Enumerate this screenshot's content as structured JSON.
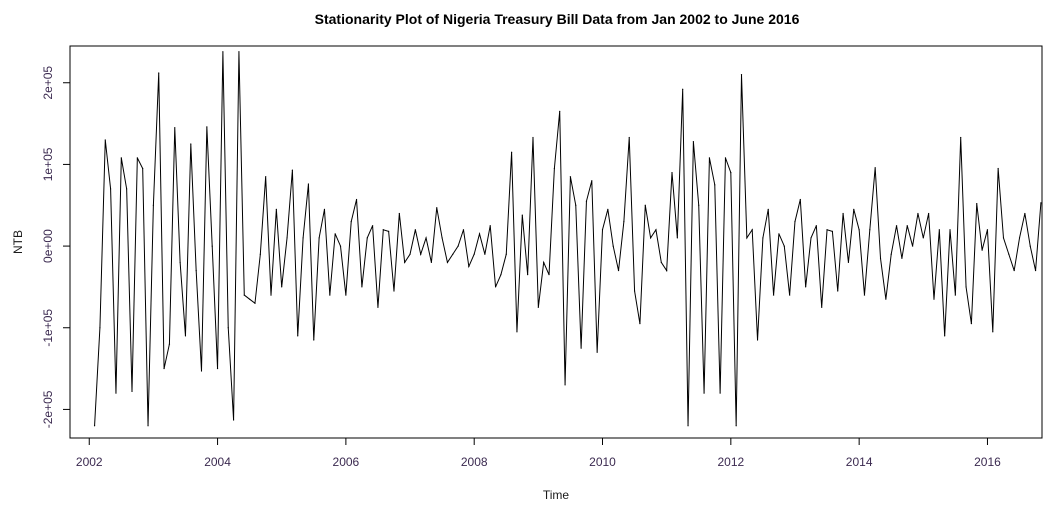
{
  "chart_data": {
    "type": "line",
    "title": "Stationarity Plot of Nigeria Treasury Bill Data from Jan 2002 to June 2016",
    "xlabel": "Time",
    "ylabel": "NTB",
    "xlim": [
      2001.7,
      2016.85
    ],
    "ylim": [
      -235000,
      245000
    ],
    "x_ticks": [
      2002,
      2004,
      2006,
      2008,
      2010,
      2012,
      2014,
      2016
    ],
    "x_tick_labels": [
      "2002",
      "2004",
      "2006",
      "2008",
      "2010",
      "2012",
      "2014",
      "2016"
    ],
    "y_ticks": [
      -200000,
      -100000,
      0,
      100000,
      200000
    ],
    "y_tick_labels": [
      "-2e+05",
      "-1e+05",
      "0e+00",
      "1e+05",
      "2e+05"
    ],
    "start": 2002.083,
    "frequency": 12,
    "series": [
      {
        "name": "NTB",
        "color": "#000000",
        "values": [
          -220000,
          -100000,
          130000,
          70000,
          -180000,
          108000,
          70000,
          -178000,
          108000,
          95000,
          -220000,
          50000,
          212000,
          -150000,
          -120000,
          145000,
          -20000,
          -110000,
          125000,
          -30000,
          -153000,
          146000,
          0,
          -150000,
          238000,
          -100000,
          -213000,
          238000,
          -60000,
          -65000,
          -70000,
          -10000,
          85000,
          -60000,
          45000,
          -50000,
          10000,
          93000,
          -110000,
          10000,
          76000,
          -115000,
          10000,
          45000,
          -60000,
          15000,
          0,
          -60000,
          30000,
          57000,
          -50000,
          10000,
          25000,
          -75000,
          20000,
          18000,
          -55000,
          40000,
          -20000,
          -10000,
          20000,
          -10000,
          10000,
          -20000,
          47000,
          10000,
          -20000,
          -10000,
          0,
          20000,
          -25000,
          -10000,
          15000,
          -10000,
          25000,
          -50000,
          -35000,
          -10000,
          115000,
          -105000,
          38000,
          -35000,
          133000,
          -75000,
          -20000,
          -35000,
          95000,
          165000,
          -170000,
          85000,
          50000,
          -125000,
          55000,
          80000,
          -130000,
          20000,
          45000,
          0,
          -30000,
          30000,
          133000,
          -55000,
          -95000,
          50000,
          10000,
          20000,
          -20000,
          -30000,
          90000,
          10000,
          192000,
          -220000,
          128000,
          50000,
          -180000,
          108000,
          75000,
          -180000,
          108000,
          90000,
          -220000,
          210000,
          10000,
          20000,
          -115000,
          10000,
          45000,
          -60000,
          15000,
          0,
          -60000,
          30000,
          57000,
          -50000,
          10000,
          25000,
          -75000,
          20000,
          18000,
          -55000,
          40000,
          -20000,
          45000,
          20000,
          -60000,
          20000,
          96000,
          -15000,
          -65000,
          -10000,
          25000,
          -15000,
          25000,
          0,
          40000,
          10000,
          40000,
          -65000,
          20000,
          -110000,
          20000,
          -60000,
          133000,
          -50000,
          -95000,
          52000,
          -5000,
          20000,
          -105000,
          95000,
          10000,
          -10000,
          -30000,
          10000,
          40000,
          0,
          -30000,
          53000
        ]
      }
    ]
  }
}
